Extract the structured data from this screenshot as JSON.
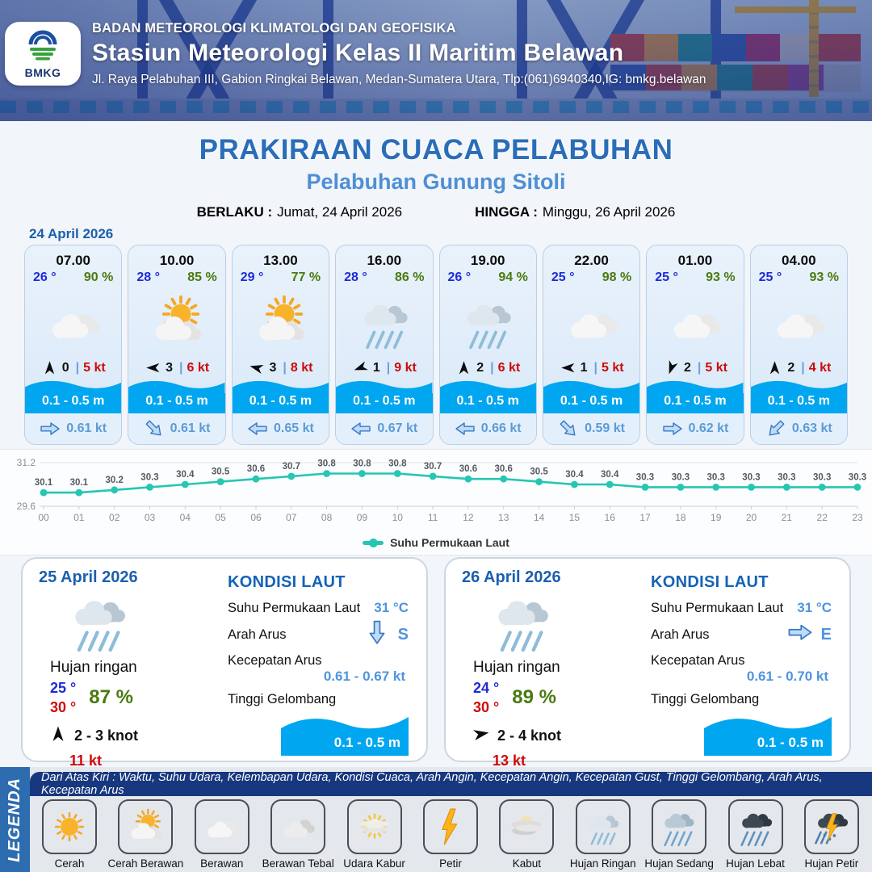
{
  "header": {
    "agency": "BADAN METEOROLOGI KLIMATOLOGI DAN GEOFISIKA",
    "station": "Stasiun Meteorologi Kelas II Maritim Belawan",
    "address": "Jl. Raya Pelabuhan III, Gabion Ringkai Belawan, Medan-Sumatera Utara, Tlp:(061)6940340,IG: bmkg.belawan",
    "logo_text": "BMKG"
  },
  "title": {
    "main": "PRAKIRAAN CUACA PELABUHAN",
    "port": "Pelabuhan Gunung Sitoli",
    "berlaku_label": "BERLAKU :",
    "berlaku_value": "Jumat, 24 April 2026",
    "hingga_label": "HINGGA :",
    "hingga_value": "Minggu, 26 April 2026"
  },
  "forecast": {
    "date": "24 April 2026",
    "cards": [
      {
        "time": "07.00",
        "temp": "26 °",
        "humidity": "90 %",
        "icon": "berawan",
        "wind_dir_deg": 0,
        "wind_speed": "0",
        "gust": "5 kt",
        "wave": "0.1 - 0.5 m",
        "current_dir_deg": 90,
        "current_speed": "0.61 kt"
      },
      {
        "time": "10.00",
        "temp": "28 °",
        "humidity": "85 %",
        "icon": "cerah-berawan",
        "wind_dir_deg": 270,
        "wind_speed": "3",
        "gust": "6 kt",
        "wave": "0.1 - 0.5 m",
        "current_dir_deg": 135,
        "current_speed": "0.61 kt"
      },
      {
        "time": "13.00",
        "temp": "29 °",
        "humidity": "77 %",
        "icon": "cerah-berawan",
        "wind_dir_deg": 285,
        "wind_speed": "3",
        "gust": "8 kt",
        "wave": "0.1 - 0.5 m",
        "current_dir_deg": 270,
        "current_speed": "0.65 kt"
      },
      {
        "time": "16.00",
        "temp": "28 °",
        "humidity": "86 %",
        "icon": "hujan-ringan",
        "wind_dir_deg": 250,
        "wind_speed": "1",
        "gust": "9 kt",
        "wave": "0.1 - 0.5 m",
        "current_dir_deg": 270,
        "current_speed": "0.67 kt"
      },
      {
        "time": "19.00",
        "temp": "26 °",
        "humidity": "94 %",
        "icon": "hujan-ringan",
        "wind_dir_deg": 0,
        "wind_speed": "2",
        "gust": "6 kt",
        "wave": "0.1 - 0.5 m",
        "current_dir_deg": 270,
        "current_speed": "0.66 kt"
      },
      {
        "time": "22.00",
        "temp": "25 °",
        "humidity": "98 %",
        "icon": "berawan",
        "wind_dir_deg": 270,
        "wind_speed": "1",
        "gust": "5 kt",
        "wave": "0.1 - 0.5 m",
        "current_dir_deg": 135,
        "current_speed": "0.59 kt"
      },
      {
        "time": "01.00",
        "temp": "25 °",
        "humidity": "93 %",
        "icon": "berawan",
        "wind_dir_deg": 200,
        "wind_speed": "2",
        "gust": "5 kt",
        "wave": "0.1 - 0.5 m",
        "current_dir_deg": 90,
        "current_speed": "0.62 kt"
      },
      {
        "time": "04.00",
        "temp": "25 °",
        "humidity": "93 %",
        "icon": "berawan",
        "wind_dir_deg": 0,
        "wind_speed": "2",
        "gust": "4 kt",
        "wave": "0.1 - 0.5 m",
        "current_dir_deg": 225,
        "current_speed": "0.63 kt"
      }
    ]
  },
  "chart_data": {
    "type": "line",
    "x": [
      "00",
      "01",
      "02",
      "03",
      "04",
      "05",
      "06",
      "07",
      "08",
      "09",
      "10",
      "11",
      "12",
      "13",
      "14",
      "15",
      "16",
      "17",
      "18",
      "19",
      "20",
      "21",
      "22",
      "23"
    ],
    "series": [
      {
        "name": "Suhu Permukaan Laut",
        "values": [
          30.1,
          30.1,
          30.2,
          30.3,
          30.4,
          30.5,
          30.6,
          30.7,
          30.8,
          30.8,
          30.8,
          30.7,
          30.6,
          30.6,
          30.5,
          30.4,
          30.4,
          30.3,
          30.3,
          30.3,
          30.3,
          30.3,
          30.3,
          30.3
        ]
      }
    ],
    "ylim": [
      29.6,
      31.2
    ],
    "yticks": [
      "31.2",
      "29.6"
    ],
    "line_color": "#26c6b2",
    "grid": true,
    "legend_position": "bottom"
  },
  "day_panels": [
    {
      "date": "25 April 2026",
      "icon": "hujan-ringan",
      "condition": "Hujan ringan",
      "temp_min": "25 °",
      "temp_max": "30 °",
      "humidity": "87 %",
      "wind_dir_deg": 0,
      "wind_range": "2  - 3 knot",
      "gust": "11 kt",
      "sea": {
        "heading": "KONDISI LAUT",
        "sst_label": "Suhu Permukaan Laut",
        "sst_value": "31 °C",
        "current_dir_label": "Arah Arus",
        "current_dir_deg": 180,
        "current_dir_text": "S",
        "current_speed_label": "Kecepatan Arus",
        "current_speed_value": "0.61 - 0.67 kt",
        "wave_label": "Tinggi Gelombang",
        "wave_value": "0.1 - 0.5 m"
      }
    },
    {
      "date": "26 April 2026",
      "icon": "hujan-ringan",
      "condition": "Hujan ringan",
      "temp_min": "24 °",
      "temp_max": "30 °",
      "humidity": "89 %",
      "wind_dir_deg": 80,
      "wind_range": "2  - 4 knot",
      "gust": "13 kt",
      "sea": {
        "heading": "KONDISI LAUT",
        "sst_label": "Suhu Permukaan Laut",
        "sst_value": "31 °C",
        "current_dir_label": "Arah Arus",
        "current_dir_deg": 90,
        "current_dir_text": "E",
        "current_speed_label": "Kecepatan Arus",
        "current_speed_value": "0.61  - 0.70 kt",
        "wave_label": "Tinggi Gelombang",
        "wave_value": "0.1 - 0.5 m"
      }
    }
  ],
  "legend": {
    "title": "LEGENDA",
    "note": "Dari Atas Kiri : Waktu, Suhu Udara, Kelembapan Udara, Kondisi Cuaca, Arah Angin, Kecepatan Angin, Kecepatan Gust, Tinggi Gelombang, Arah Arus, Kecepatan Arus",
    "items": [
      {
        "icon": "cerah",
        "label": "Cerah"
      },
      {
        "icon": "cerah-berawan",
        "label": "Cerah Berawan"
      },
      {
        "icon": "berawan",
        "label": "Berawan"
      },
      {
        "icon": "berawan-tebal",
        "label": "Berawan Tebal"
      },
      {
        "icon": "udara-kabur",
        "label": "Udara Kabur"
      },
      {
        "icon": "petir",
        "label": "Petir"
      },
      {
        "icon": "kabut",
        "label": "Kabut"
      },
      {
        "icon": "hujan-ringan",
        "label": "Hujan Ringan"
      },
      {
        "icon": "hujan-sedang",
        "label": "Hujan Sedang"
      },
      {
        "icon": "hujan-lebat",
        "label": "Hujan Lebat"
      },
      {
        "icon": "hujan-petir",
        "label": "Hujan Petir"
      }
    ]
  },
  "colors": {
    "accent_blue": "#1b5fae",
    "title_blue": "#2a6db8",
    "subtitle_blue": "#4e8fd6",
    "temp_blue": "#1d2bd8",
    "humidity_green": "#4a7a10",
    "gust_red": "#cf0a0a",
    "wave_blue": "#00a6ef",
    "current_blue": "#5b9bd5",
    "chart_teal": "#26c6b2",
    "legend_bar_navy": "#17377e",
    "legend_strip_blue": "#2e6cb0"
  }
}
